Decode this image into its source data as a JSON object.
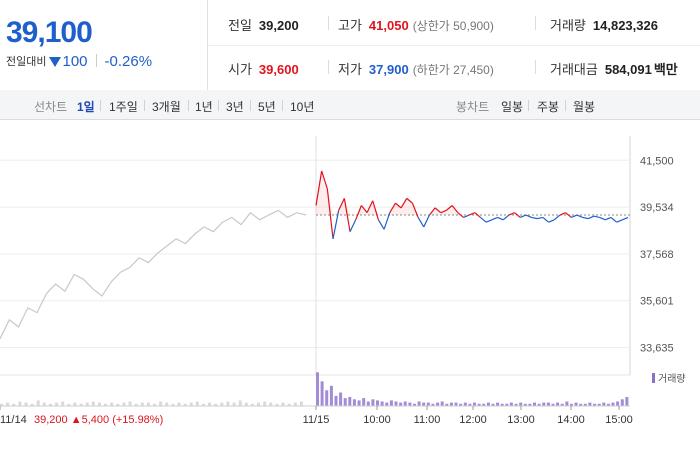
{
  "quote": {
    "price": "39,100",
    "change_label": "전일대비",
    "change": "100",
    "change_pct": "-0.26%"
  },
  "stats": {
    "prev_close": {
      "label": "전일",
      "value": "39,200"
    },
    "high": {
      "label": "고가",
      "value": "41,050",
      "sub": "(상한가 50,900)"
    },
    "volume": {
      "label": "거래량",
      "value": "14,823,326"
    },
    "open": {
      "label": "시가",
      "value": "39,600"
    },
    "low": {
      "label": "저가",
      "value": "37,900",
      "sub": "(하한가 27,450)"
    },
    "turnover": {
      "label": "거래대금",
      "value": "584,091",
      "unit": "백만"
    }
  },
  "tabs": {
    "line_title": "선차트",
    "line": [
      "1일",
      "1주일",
      "3개월",
      "1년",
      "3년",
      "5년",
      "10년"
    ],
    "active": "1일",
    "candle_title": "봉차트",
    "candle": [
      "일봉",
      "주봉",
      "월봉"
    ]
  },
  "chart_data": {
    "type": "line",
    "ylim": [
      32900,
      42100
    ],
    "y_ticks": [
      "41,500",
      "39,534",
      "37,568",
      "35,601",
      "33,635"
    ],
    "y_tick_values": [
      41500,
      39534,
      37568,
      35601,
      33635
    ],
    "prev_close_value": 39200,
    "x_ticks": [
      "11/14",
      "11/15",
      "10:00",
      "11:00",
      "12:00",
      "13:00",
      "14:00",
      "15:00"
    ],
    "volume_legend": "거래량",
    "prev_day_summary": {
      "date": "11/14",
      "close": "39,200",
      "change": "5,400",
      "pct": "(+15.98%)"
    },
    "prev_day_series": [
      34000,
      34800,
      34500,
      35300,
      35100,
      35900,
      36300,
      36000,
      36700,
      36500,
      36100,
      35800,
      36400,
      36800,
      37000,
      37400,
      37200,
      37600,
      37900,
      38200,
      38000,
      38400,
      38700,
      38500,
      38900,
      39100,
      38800,
      39300,
      39000,
      39200,
      39400,
      39100,
      39300,
      39200
    ],
    "today_series": [
      39600,
      41050,
      40300,
      38200,
      39400,
      39900,
      38500,
      39000,
      39600,
      39300,
      39800,
      39000,
      38600,
      39300,
      39700,
      39500,
      39900,
      39700,
      39100,
      38700,
      39200,
      39500,
      39300,
      39400,
      39600,
      39300,
      39100,
      39200,
      39300,
      39100,
      38900,
      39000,
      39100,
      39000,
      39200,
      39300,
      39100,
      39200,
      39100,
      39050,
      39100,
      38900,
      39000,
      39200,
      39300,
      39100,
      39200,
      39100,
      39050,
      39150,
      39100,
      39000,
      39100,
      38900,
      39000,
      39100
    ],
    "prev_day_volume": [
      2,
      3,
      2,
      4,
      3,
      2,
      5,
      3,
      2,
      3,
      4,
      2,
      3,
      2,
      3,
      4,
      3,
      2,
      3,
      2,
      3,
      4,
      2,
      3,
      3,
      2,
      4,
      3,
      2,
      3,
      2,
      3,
      4,
      2,
      3,
      2,
      3,
      4,
      3,
      5,
      3,
      2,
      3,
      4,
      3,
      2,
      3,
      2,
      3,
      4
    ],
    "today_volume": [
      30,
      22,
      14,
      18,
      9,
      12,
      7,
      8,
      6,
      5,
      7,
      4,
      6,
      5,
      4,
      3,
      5,
      4,
      3,
      4,
      3,
      2,
      4,
      3,
      3,
      2,
      3,
      4,
      2,
      3,
      3,
      2,
      3,
      2,
      3,
      2,
      2,
      3,
      2,
      3,
      2,
      2,
      3,
      2,
      3,
      2,
      2,
      3,
      2,
      3,
      3,
      2,
      3,
      2,
      4,
      2,
      3,
      2,
      2,
      3,
      2,
      2,
      3,
      2,
      3,
      4,
      6,
      8
    ]
  }
}
